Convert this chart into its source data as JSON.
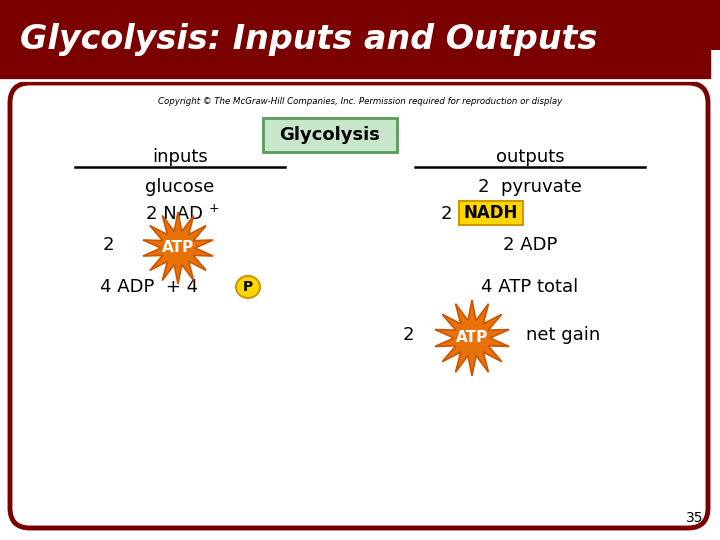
{
  "title": "Glycolysis: Inputs and Outputs",
  "title_bg": "#7B0000",
  "title_text_color": "#FFFFFF",
  "bg_color": "#FFFFFF",
  "border_color": "#7B0000",
  "copyright": "Copyright © The McGraw-Hill Companies, Inc. Permission required for reproduction or display",
  "glycolysis_box_text": "Glycolysis",
  "glycolysis_box_bg": "#C8E6C9",
  "glycolysis_box_border": "#5B9C5A",
  "inputs_label": "inputs",
  "outputs_label": "outputs",
  "page_number": "35",
  "atp_color1": "#E8720A",
  "atp_color2": "#FFD700",
  "atp_edge": "#CC5500",
  "nadh_box_bg": "#FFD700",
  "nadh_box_border": "#CC9900",
  "p_color": "#FFD700",
  "p_border": "#CC9900"
}
